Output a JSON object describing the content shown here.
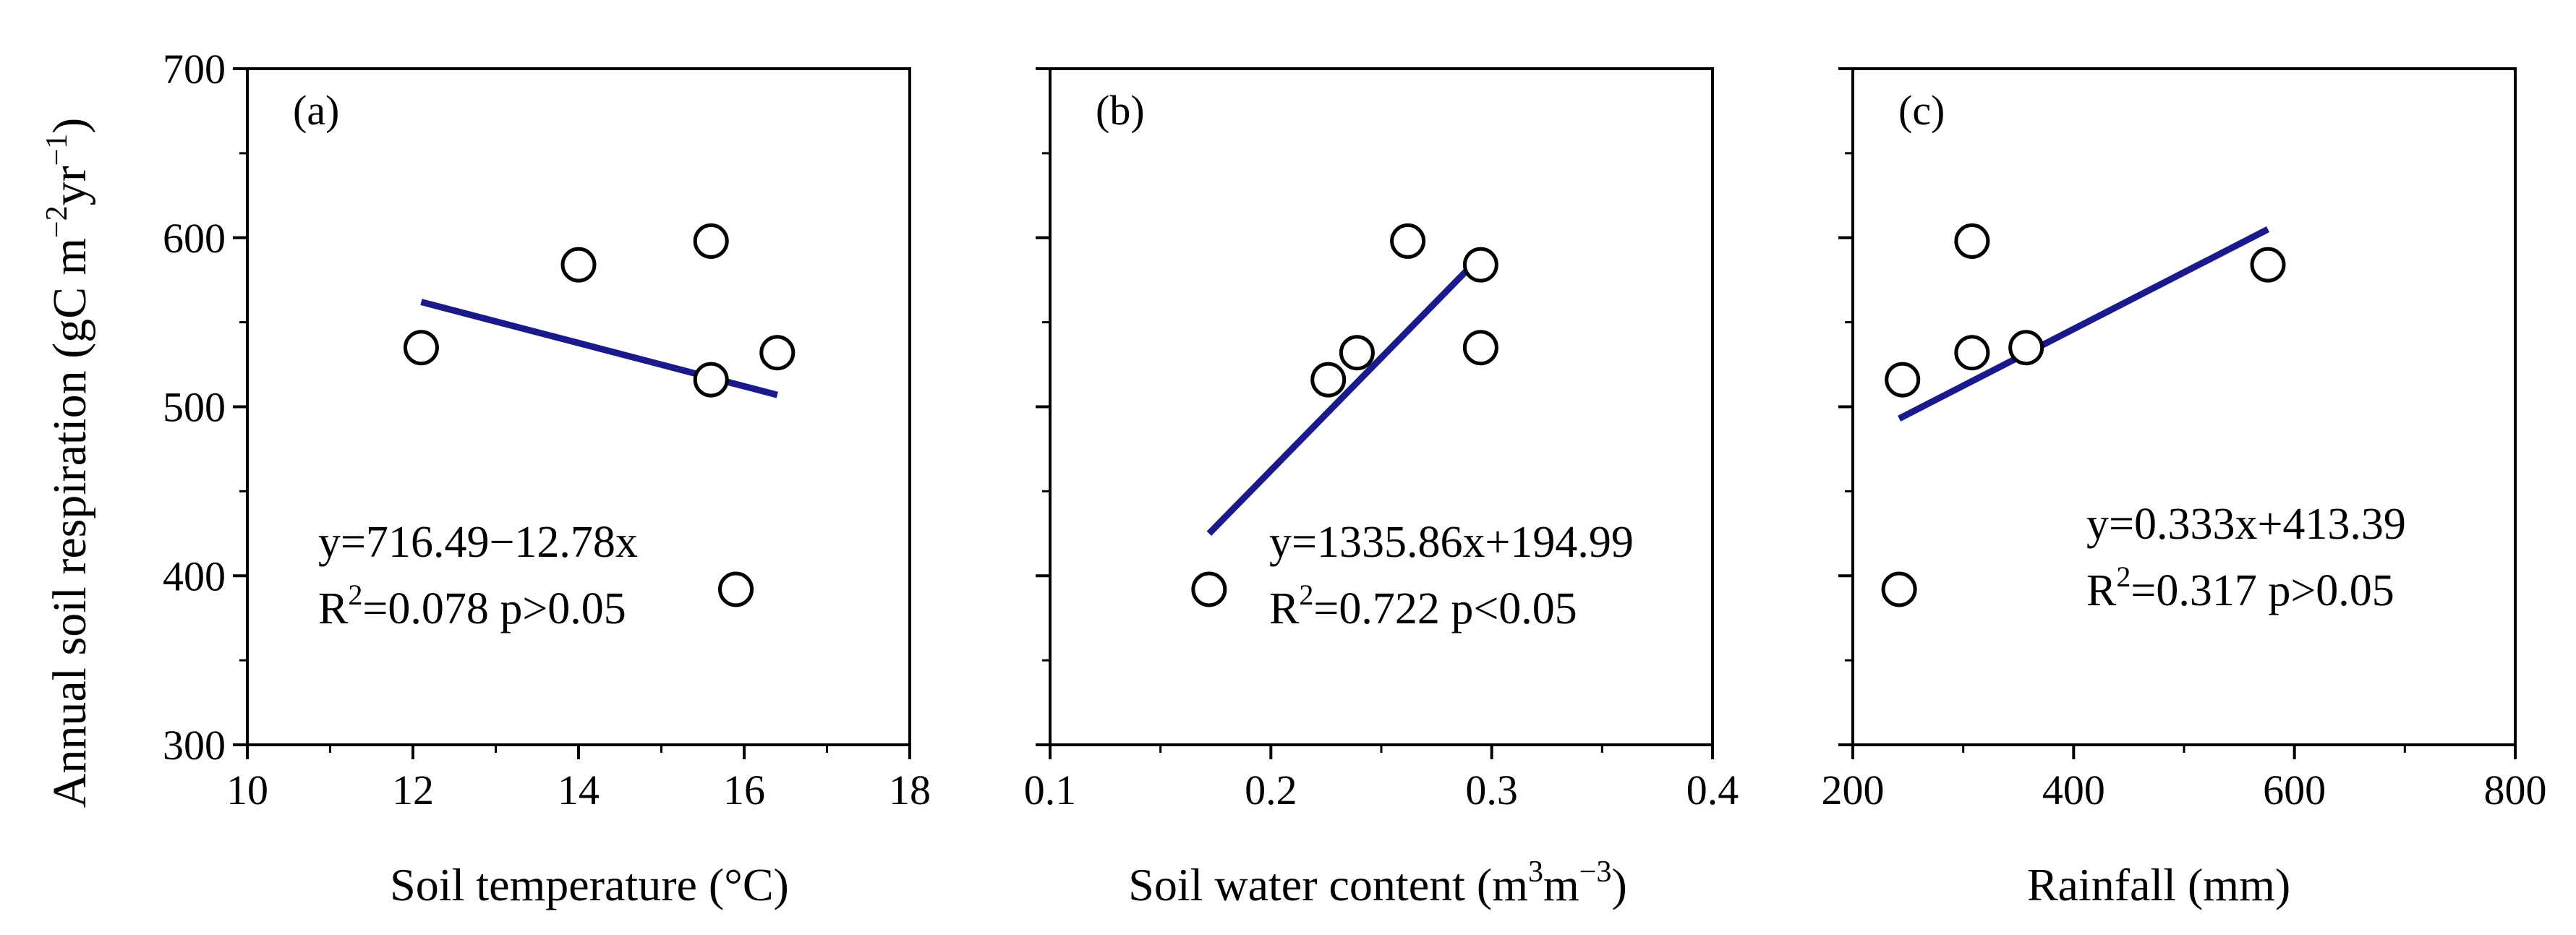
{
  "figure": {
    "ylabel_main": "Annual soil respiration (gC m",
    "ylabel_sup1": "−2",
    "ylabel_mid": "yr",
    "ylabel_sup2": "−1",
    "ylabel_end": ")"
  },
  "colors": {
    "fit_line": "#1a1a8c",
    "marker": "#000000",
    "axis": "#000000"
  },
  "chart_data": [
    {
      "type": "scatter",
      "panel": "(a)",
      "xlabel": "Soil temperature (°C)",
      "ylabel": "Annual soil respiration (gC m−2yr−1)",
      "xlim": [
        10,
        18
      ],
      "ylim": [
        300,
        700
      ],
      "xticks": [
        10,
        12,
        14,
        16,
        18
      ],
      "yticks": [
        300,
        400,
        500,
        600,
        700
      ],
      "points": [
        {
          "x": 12.1,
          "y": 535
        },
        {
          "x": 14.0,
          "y": 584
        },
        {
          "x": 15.6,
          "y": 598
        },
        {
          "x": 15.6,
          "y": 516
        },
        {
          "x": 16.4,
          "y": 532
        },
        {
          "x": 15.9,
          "y": 392
        }
      ],
      "fit": {
        "x": [
          12.1,
          16.4
        ],
        "y": [
          562,
          507
        ]
      },
      "equation": "y=716.49−12.78x",
      "r2_base": "R",
      "r2_sup": "2",
      "r2_rest": "=0.078 p>0.05"
    },
    {
      "type": "scatter",
      "panel": "(b)",
      "xlabel_main": "Soil water content  (m",
      "xlabel_sup1": "3",
      "xlabel_mid": "m",
      "xlabel_sup2": "−3",
      "xlabel_end": ")",
      "xlim": [
        0.1,
        0.4
      ],
      "ylim": [
        300,
        700
      ],
      "xticks": [
        0.1,
        0.2,
        0.3,
        0.4
      ],
      "yticks": [
        300,
        400,
        500,
        600,
        700
      ],
      "points": [
        {
          "x": 0.172,
          "y": 392
        },
        {
          "x": 0.226,
          "y": 516
        },
        {
          "x": 0.239,
          "y": 532
        },
        {
          "x": 0.262,
          "y": 598
        },
        {
          "x": 0.295,
          "y": 584
        },
        {
          "x": 0.295,
          "y": 535
        }
      ],
      "fit": {
        "x": [
          0.172,
          0.295
        ],
        "y": [
          425,
          589
        ]
      },
      "equation": "y=1335.86x+194.99",
      "r2_base": "R",
      "r2_sup": "2",
      "r2_rest": "=0.722 p<0.05"
    },
    {
      "type": "scatter",
      "panel": "(c)",
      "xlabel": "Rainfall (mm)",
      "xlim": [
        200,
        800
      ],
      "ylim": [
        300,
        700
      ],
      "xticks": [
        200,
        400,
        600,
        800
      ],
      "yticks": [
        300,
        400,
        500,
        600,
        700
      ],
      "points": [
        {
          "x": 245,
          "y": 516
        },
        {
          "x": 242,
          "y": 392
        },
        {
          "x": 308,
          "y": 598
        },
        {
          "x": 308,
          "y": 532
        },
        {
          "x": 357,
          "y": 535
        },
        {
          "x": 576,
          "y": 584
        }
      ],
      "fit": {
        "x": [
          242,
          576
        ],
        "y": [
          493,
          605
        ]
      },
      "equation": "y=0.333x+413.39",
      "r2_base": "R",
      "r2_sup": "2",
      "r2_rest": "=0.317 p>0.05"
    }
  ]
}
